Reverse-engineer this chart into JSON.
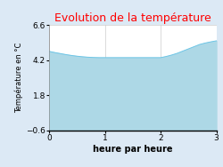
{
  "title": "Evolution de la température",
  "xlabel": "heure par heure",
  "ylabel": "Température en °C",
  "xlim": [
    0,
    3
  ],
  "ylim": [
    -0.6,
    6.6
  ],
  "yticks": [
    -0.6,
    1.8,
    4.2,
    6.6
  ],
  "xticks": [
    0,
    1,
    2,
    3
  ],
  "x": [
    0,
    0.1,
    0.2,
    0.3,
    0.4,
    0.5,
    0.6,
    0.7,
    0.8,
    0.9,
    1.0,
    1.1,
    1.2,
    1.3,
    1.4,
    1.5,
    1.6,
    1.7,
    1.8,
    1.9,
    2.0,
    2.1,
    2.2,
    2.3,
    2.4,
    2.5,
    2.6,
    2.7,
    2.8,
    2.9,
    3.0
  ],
  "y": [
    4.8,
    4.72,
    4.65,
    4.58,
    4.52,
    4.47,
    4.43,
    4.4,
    4.38,
    4.37,
    4.37,
    4.37,
    4.37,
    4.37,
    4.37,
    4.37,
    4.37,
    4.37,
    4.37,
    4.37,
    4.37,
    4.45,
    4.55,
    4.67,
    4.82,
    4.97,
    5.12,
    5.27,
    5.37,
    5.45,
    5.52
  ],
  "fill_color": "#add8e6",
  "line_color": "#6ec6e6",
  "bg_color": "#dce9f5",
  "plot_bg_color": "#ffffff",
  "title_color": "#ff0000",
  "grid_color": "#cccccc",
  "title_fontsize": 9,
  "label_fontsize": 7,
  "tick_fontsize": 6.5,
  "ylabel_fontsize": 6
}
